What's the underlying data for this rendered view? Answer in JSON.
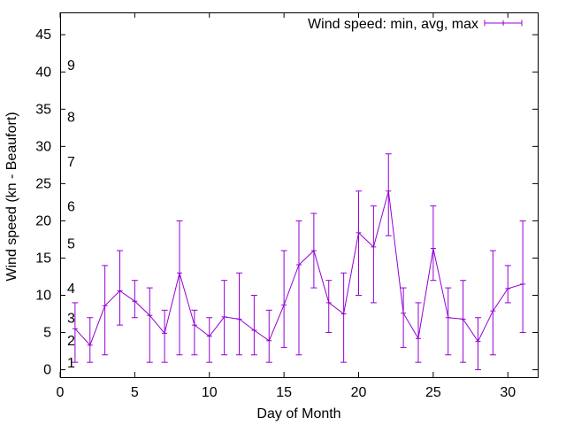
{
  "chart_data": {
    "type": "line",
    "xlabel": "Day of Month",
    "ylabel": "Wind speed (kn - Beaufort)",
    "xlim": [
      0,
      32
    ],
    "ylim": [
      -1,
      48
    ],
    "xticks": [
      0,
      5,
      10,
      15,
      20,
      25,
      30
    ],
    "yticks": [
      0,
      5,
      10,
      15,
      20,
      25,
      30,
      35,
      40,
      45
    ],
    "grid": false,
    "legend_position": "top-right",
    "color": "#9400d3",
    "series": [
      {
        "name": "Wind speed: min, avg, max",
        "x": [
          1,
          2,
          3,
          4,
          5,
          6,
          7,
          8,
          9,
          10,
          11,
          12,
          13,
          14,
          15,
          16,
          17,
          18,
          19,
          20,
          21,
          22,
          23,
          24,
          25,
          26,
          27,
          28,
          29,
          30,
          31
        ],
        "avg": [
          5.5,
          3.3,
          8.6,
          10.6,
          9.2,
          7.3,
          4.9,
          13.0,
          6.0,
          4.5,
          7.1,
          6.8,
          5.3,
          3.9,
          8.7,
          14.1,
          16.0,
          9.0,
          7.5,
          18.4,
          16.5,
          24.0,
          7.6,
          4.2,
          16.3,
          7.0,
          6.8,
          3.8,
          7.9,
          10.9,
          11.5
        ],
        "min": [
          1,
          1,
          2,
          6,
          7,
          1,
          1,
          2,
          2,
          1,
          2,
          2,
          2,
          1,
          3,
          2,
          11,
          5,
          1,
          10,
          9,
          18,
          3,
          1,
          12,
          2,
          1,
          0,
          2,
          9,
          5
        ],
        "max": [
          9,
          7,
          14,
          16,
          12,
          11,
          8,
          20,
          8,
          7,
          12,
          13,
          10,
          8,
          16,
          20,
          21,
          12,
          13,
          24,
          22,
          29,
          11,
          9,
          22,
          11,
          12,
          7,
          16,
          14,
          20
        ]
      }
    ],
    "beaufort_annotations": [
      {
        "label": "1",
        "at": 1
      },
      {
        "label": "2",
        "at": 4
      },
      {
        "label": "3",
        "at": 7
      },
      {
        "label": "4",
        "at": 11
      },
      {
        "label": "5",
        "at": 17
      },
      {
        "label": "6",
        "at": 22
      },
      {
        "label": "7",
        "at": 28
      },
      {
        "label": "8",
        "at": 34
      },
      {
        "label": "9",
        "at": 41
      }
    ]
  }
}
